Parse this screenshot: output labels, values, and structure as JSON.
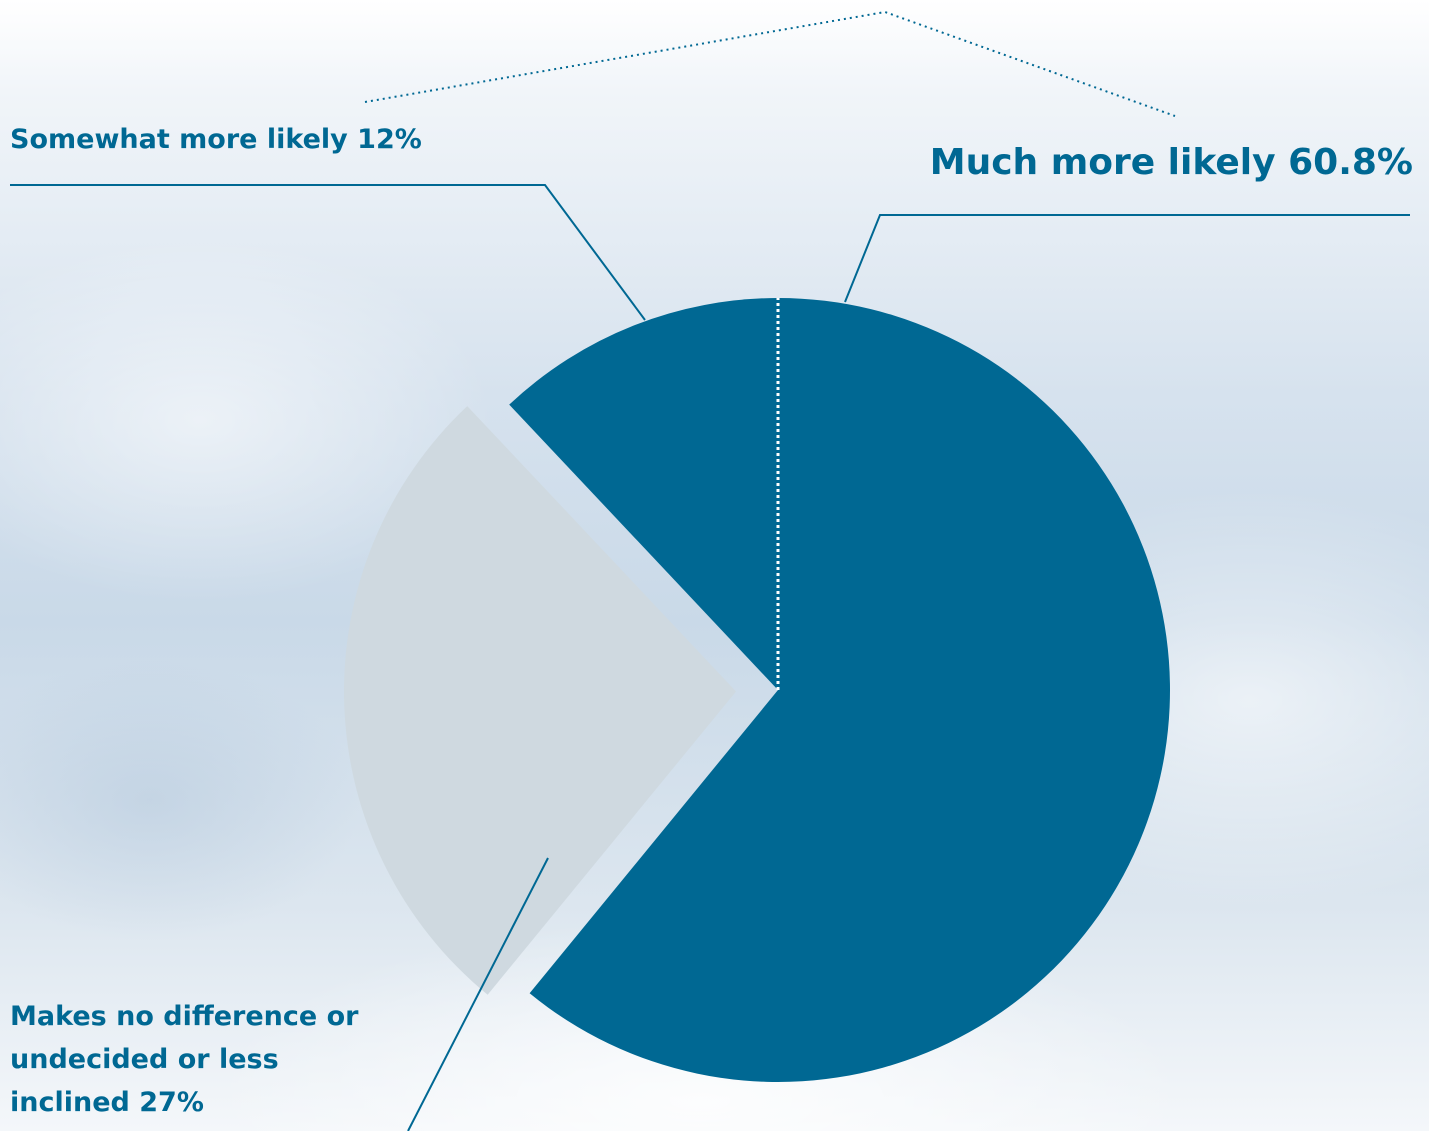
{
  "chart_data": {
    "type": "pie",
    "categories": [
      "Much more likely",
      "Makes no difference or undecided or less inclined",
      "Somewhat more likely"
    ],
    "values": [
      60.8,
      27,
      12
    ],
    "value_labels": [
      "60.8%",
      "27%",
      "12%"
    ],
    "colors": [
      "#006893",
      "#cfd9e0",
      "#006893"
    ]
  }
}
